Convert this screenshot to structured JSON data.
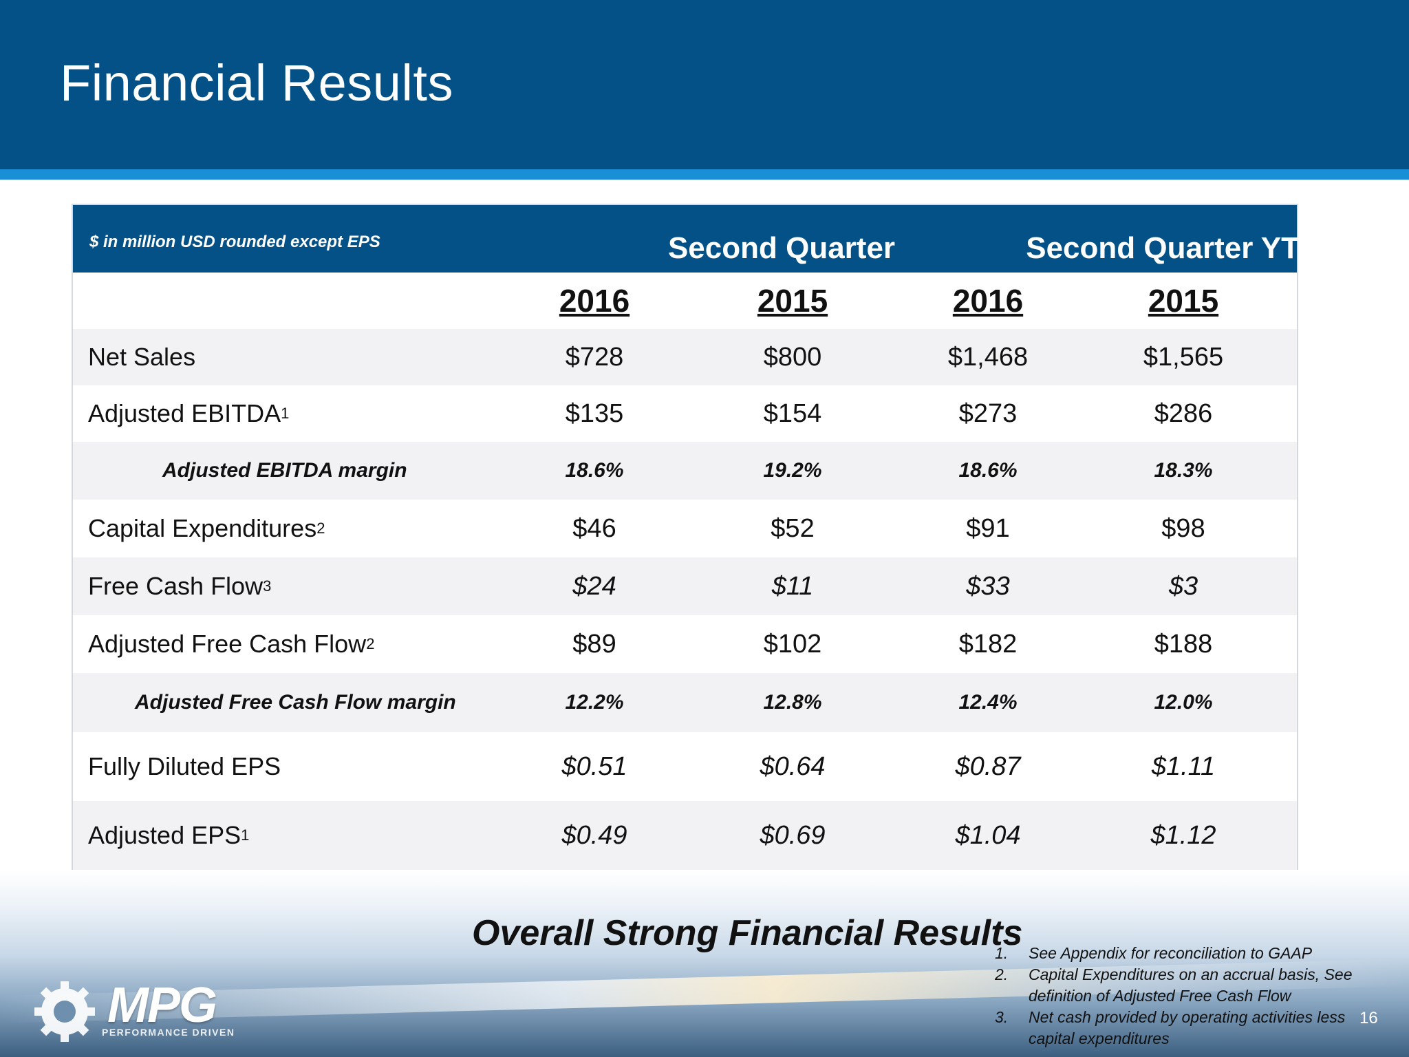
{
  "header": {
    "title": "Financial Results"
  },
  "table": {
    "unit_note": "$ in million USD rounded except EPS",
    "groups": [
      "Second Quarter",
      "Second Quarter YTD"
    ],
    "years": [
      "2016",
      "2015",
      "2016",
      "2015"
    ],
    "rows": [
      {
        "label": "Net Sales",
        "sup": "",
        "values": [
          "$728",
          "$800",
          "$1,468",
          "$1,565"
        ]
      },
      {
        "label": "Adjusted EBITDA",
        "sup": "1",
        "values": [
          "$135",
          "$154",
          "$273",
          "$286"
        ]
      },
      {
        "label": "Adjusted EBITDA margin",
        "sup": "",
        "values": [
          "18.6%",
          "19.2%",
          "18.6%",
          "18.3%"
        ]
      },
      {
        "label": "Capital Expenditures",
        "sup": "2",
        "values": [
          "$46",
          "$52",
          "$91",
          "$98"
        ]
      },
      {
        "label": "Free Cash Flow",
        "sup": "3",
        "values": [
          "$24",
          "$11",
          "$33",
          "$3"
        ]
      },
      {
        "label": "Adjusted Free Cash Flow",
        "sup": "2",
        "values": [
          "$89",
          "$102",
          "$182",
          "$188"
        ]
      },
      {
        "label": "Adjusted Free Cash Flow margin",
        "sup": "",
        "values": [
          "12.2%",
          "12.8%",
          "12.4%",
          "12.0%"
        ]
      },
      {
        "label": "Fully Diluted EPS",
        "sup": "",
        "values": [
          "$0.51",
          "$0.64",
          "$0.87",
          "$1.11"
        ]
      },
      {
        "label": "Adjusted EPS",
        "sup": "1",
        "values": [
          "$0.49",
          "$0.69",
          "$1.04",
          "$1.12"
        ]
      }
    ]
  },
  "tagline": "Overall Strong Financial Results",
  "footnotes": [
    {
      "num": "1.",
      "text": "See Appendix for reconciliation to GAAP"
    },
    {
      "num": "2.",
      "text": "Capital Expenditures on an accrual basis, See definition of Adjusted Free Cash Flow"
    },
    {
      "num": "3.",
      "text": "Net cash provided by operating activities less capital expenditures"
    }
  ],
  "logo": {
    "name": "MPG",
    "subtitle": "PERFORMANCE DRIVEN",
    "icon": "gear-icon"
  },
  "page_number": "16",
  "colors": {
    "header": "#045187",
    "stripe": "#1b8fd6"
  }
}
